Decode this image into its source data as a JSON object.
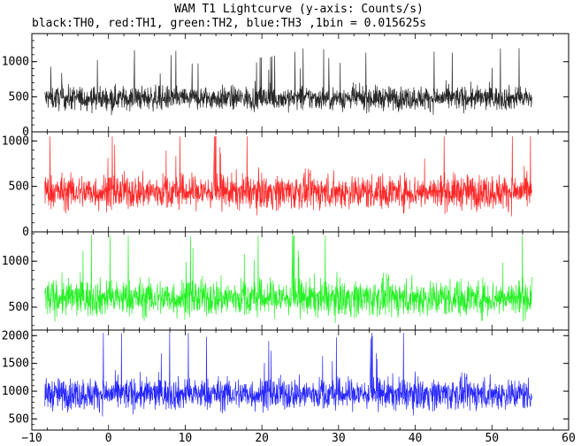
{
  "chart_data": {
    "type": "line",
    "title": "WAM T1 Lightcurve (y-axis: Counts/s)",
    "subtitle": "black:TH0, red:TH1, green:TH2, blue:TH3 ,1bin = 0.015625s",
    "xlim": [
      -10,
      60
    ],
    "x_ticks": [
      -10,
      0,
      10,
      20,
      30,
      40,
      50,
      60
    ],
    "x_data_range": [
      -8.3,
      55.2
    ],
    "grid": false,
    "panels": [
      {
        "name": "TH0",
        "color": "#000000",
        "ylim": [
          0,
          1400
        ],
        "y_ticks": [
          0,
          500,
          1000
        ],
        "mean": 480,
        "spread": 160,
        "peak_max": 1350
      },
      {
        "name": "TH1",
        "color": "#ff0000",
        "ylim": [
          0,
          1100
        ],
        "y_ticks": [
          0,
          500,
          1000
        ],
        "mean": 440,
        "spread": 180,
        "peak_max": 1050
      },
      {
        "name": "TH2",
        "color": "#00ee00",
        "ylim": [
          250,
          1320
        ],
        "y_ticks": [
          500,
          1000
        ],
        "mean": 600,
        "spread": 190,
        "peak_max": 1280
      },
      {
        "name": "TH3",
        "color": "#0000ff",
        "ylim": [
          300,
          2100
        ],
        "y_ticks": [
          500,
          1000,
          1500,
          2000
        ],
        "mean": 950,
        "spread": 270,
        "peak_max": 2050
      }
    ]
  }
}
